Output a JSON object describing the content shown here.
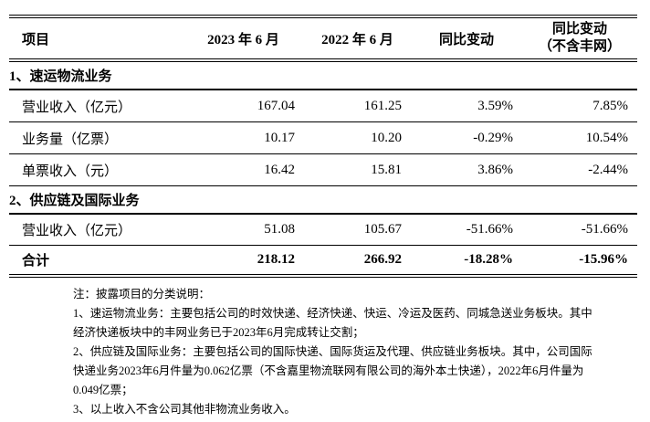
{
  "colors": {
    "text": "#000000",
    "background": "#ffffff",
    "rule": "#000000"
  },
  "table": {
    "header": {
      "item": "项目",
      "period_2023": "2023 年 6 月",
      "period_2022": "2022 年 6 月",
      "yoy": "同比变动",
      "yoy_ex_line1": "同比变动",
      "yoy_ex_line2": "（不含丰网）"
    },
    "section1": {
      "label": "1、速运物流业务"
    },
    "section1_rows": [
      {
        "label": "营业收入（亿元）",
        "v2023": "167.04",
        "v2022": "161.25",
        "yoy": "3.59%",
        "yoy_ex": "7.85%"
      },
      {
        "label": "业务量（亿票）",
        "v2023": "10.17",
        "v2022": "10.20",
        "yoy": "-0.29%",
        "yoy_ex": "10.54%"
      },
      {
        "label": "单票收入（元）",
        "v2023": "16.42",
        "v2022": "15.81",
        "yoy": "3.86%",
        "yoy_ex": "-2.44%"
      }
    ],
    "section2": {
      "label": "2、供应链及国际业务"
    },
    "section2_rows": [
      {
        "label": "营业收入（亿元）",
        "v2023": "51.08",
        "v2022": "105.67",
        "yoy": "-51.66%",
        "yoy_ex": "-51.66%"
      }
    ],
    "total_row": {
      "label": "合计",
      "v2023": "218.12",
      "v2022": "266.92",
      "yoy": "-18.28%",
      "yoy_ex": "-15.96%"
    }
  },
  "notes": {
    "heading": "注：披露项目的分类说明：",
    "items": [
      "1、速运物流业务：主要包括公司的时效快递、经济快递、快运、冷运及医药、同城急送业务板块。其中经济快递板块中的丰网业务已于2023年6月完成转让交割；",
      "2、供应链及国际业务：主要包括公司的国际快递、国际货运及代理、供应链业务板块。其中，公司国际快递业务2023年6月件量为0.062亿票（不含嘉里物流联网有限公司的海外本土快递），2022年6月件量为0.049亿票；",
      "3、以上收入不含公司其他非物流业务收入。"
    ]
  }
}
